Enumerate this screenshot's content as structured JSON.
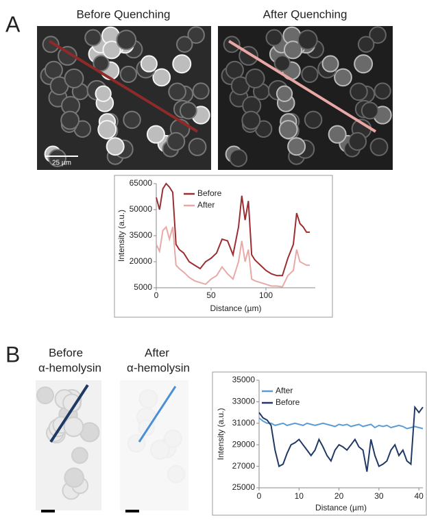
{
  "panel_labels": [
    "A",
    "B"
  ],
  "panel_a": {
    "image_titles": [
      "Before Quenching",
      "After Quenching"
    ],
    "scale_bar_label": "25 µm"
  },
  "panel_b": {
    "image_titles": [
      [
        "Before",
        "α-hemolysin"
      ],
      [
        "After",
        "α-hemolysin"
      ]
    ]
  },
  "chart_data": [
    {
      "type": "line",
      "x_label": "Distance (µm)",
      "y_label": "Intensity (a.u.)",
      "x": [
        0,
        3,
        6,
        9,
        12,
        15,
        18,
        21,
        25,
        30,
        35,
        40,
        45,
        50,
        55,
        60,
        65,
        70,
        75,
        78,
        81,
        84,
        87,
        90,
        95,
        100,
        105,
        110,
        115,
        120,
        125,
        128,
        131,
        134,
        137,
        140
      ],
      "series": [
        {
          "name": "Before",
          "color": "#9b2d30",
          "values": [
            57000,
            50000,
            62000,
            65000,
            63000,
            60000,
            30000,
            27000,
            25000,
            20000,
            18000,
            16000,
            20000,
            22000,
            25000,
            33000,
            32000,
            24000,
            40000,
            58000,
            44000,
            55000,
            24000,
            21000,
            18000,
            15000,
            13000,
            12000,
            12000,
            22000,
            30000,
            48000,
            42000,
            40000,
            37000,
            37000
          ]
        },
        {
          "name": "After",
          "color": "#e8a9a6",
          "values": [
            30000,
            26000,
            38000,
            40000,
            33000,
            40000,
            18000,
            16000,
            14000,
            11000,
            9000,
            8000,
            7000,
            10000,
            12000,
            17000,
            13000,
            10000,
            20000,
            32000,
            20000,
            27000,
            10000,
            9000,
            8000,
            7000,
            6000,
            6000,
            5500,
            12000,
            15000,
            27000,
            20000,
            19000,
            18000,
            18000
          ]
        }
      ],
      "xlim": [
        0,
        145
      ],
      "xticks": [
        0,
        50,
        100
      ],
      "ylim": [
        5000,
        65000
      ],
      "yticks": [
        5000,
        20000,
        35000,
        50000,
        65000
      ],
      "legend": "upper left",
      "grid": false
    },
    {
      "type": "line",
      "x_label": "Distance (µm)",
      "y_label": "Intensity (a.u.)",
      "x": [
        0,
        1,
        2,
        3,
        4,
        5,
        6,
        7,
        8,
        9,
        10,
        11,
        12,
        13,
        14,
        15,
        16,
        17,
        18,
        19,
        20,
        21,
        22,
        23,
        24,
        25,
        26,
        27,
        28,
        29,
        30,
        31,
        32,
        33,
        34,
        35,
        36,
        37,
        38,
        39,
        40,
        41
      ],
      "series": [
        {
          "name": "After",
          "color": "#5b9bd5",
          "values": [
            31500,
            31200,
            31000,
            31000,
            30800,
            30900,
            31000,
            30800,
            30900,
            31000,
            30900,
            30800,
            31000,
            30900,
            30800,
            30900,
            31000,
            30900,
            30800,
            30700,
            30900,
            30800,
            30900,
            30700,
            30800,
            30900,
            30700,
            30800,
            30900,
            30600,
            30800,
            30700,
            30800,
            30600,
            30700,
            30800,
            30700,
            30500,
            30600,
            30700,
            30600,
            30500
          ]
        },
        {
          "name": "Before",
          "color": "#1f3864",
          "values": [
            32000,
            31500,
            31300,
            30800,
            28500,
            27000,
            27200,
            28200,
            29000,
            29200,
            29500,
            29000,
            28500,
            28000,
            28500,
            29500,
            28800,
            28000,
            27500,
            28500,
            29000,
            28800,
            28500,
            29000,
            29500,
            28800,
            28500,
            26500,
            29500,
            28000,
            27000,
            27200,
            27500,
            28500,
            29000,
            28000,
            28500,
            27500,
            27200,
            32500,
            32000,
            32500
          ]
        }
      ],
      "xlim": [
        0,
        41
      ],
      "xticks": [
        0,
        10,
        20,
        30,
        40
      ],
      "ylim": [
        25000,
        35000
      ],
      "yticks": [
        25000,
        27000,
        29000,
        31000,
        33000,
        35000
      ],
      "legend": "upper left",
      "grid": false
    }
  ]
}
